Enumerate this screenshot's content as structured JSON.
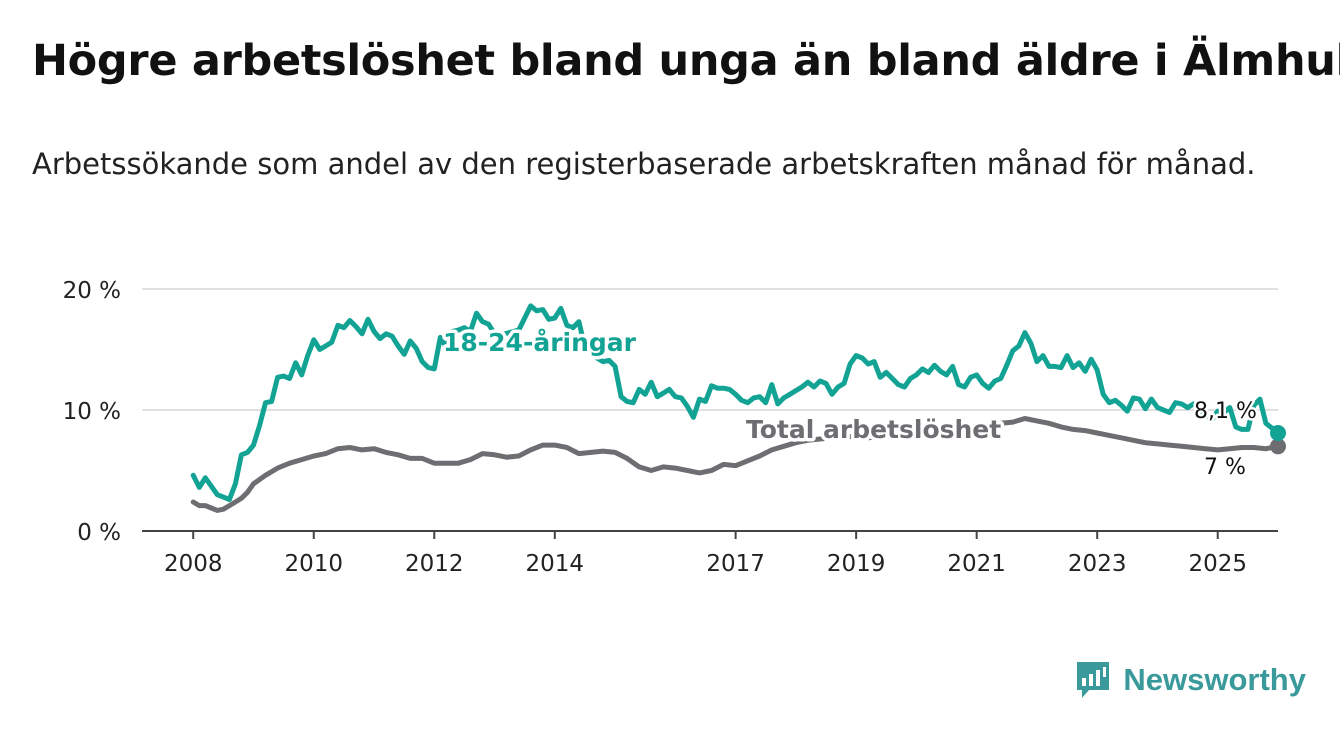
{
  "title": "Högre arbetslöshet bland unga än bland äldre i Älmhult",
  "subtitle": "Arbetssökande som andel av den registerbaserade arbetskraften månad för månad.",
  "brand": "Newsworthy",
  "colors": {
    "youth": "#12a394",
    "total": "#6e6e72",
    "axis": "#444444",
    "grid": "#d6d6d6",
    "text": "#111111"
  },
  "chart_data": {
    "type": "line",
    "x_unit": "year",
    "xlim": [
      2007.15,
      2026.0
    ],
    "ylim": [
      0,
      20
    ],
    "y_ticks": [
      0,
      10,
      20
    ],
    "y_tick_labels": [
      "0 %",
      "10 %",
      "20 %"
    ],
    "x_ticks": [
      2008,
      2010,
      2012,
      2014,
      2017,
      2019,
      2021,
      2023,
      2025
    ],
    "x_tick_labels": [
      "2008",
      "2010",
      "2012",
      "2014",
      "2017",
      "2019",
      "2021",
      "2023",
      "2025"
    ],
    "grid": "horizontal",
    "series": [
      {
        "name": "18-24-åringar",
        "color": "#12a394",
        "end_label": "8,1 %",
        "points": [
          [
            2008.0,
            4.6
          ],
          [
            2008.1,
            3.6
          ],
          [
            2008.2,
            4.4
          ],
          [
            2008.3,
            3.7
          ],
          [
            2008.4,
            3.0
          ],
          [
            2008.5,
            2.8
          ],
          [
            2008.6,
            2.6
          ],
          [
            2008.7,
            3.9
          ],
          [
            2008.8,
            6.3
          ],
          [
            2008.9,
            6.5
          ],
          [
            2009.0,
            7.1
          ],
          [
            2009.1,
            8.7
          ],
          [
            2009.2,
            10.6
          ],
          [
            2009.3,
            10.7
          ],
          [
            2009.4,
            12.7
          ],
          [
            2009.5,
            12.8
          ],
          [
            2009.6,
            12.6
          ],
          [
            2009.7,
            13.9
          ],
          [
            2009.8,
            12.9
          ],
          [
            2009.9,
            14.5
          ],
          [
            2010.0,
            15.8
          ],
          [
            2010.1,
            15.0
          ],
          [
            2010.2,
            15.3
          ],
          [
            2010.3,
            15.6
          ],
          [
            2010.4,
            17.0
          ],
          [
            2010.5,
            16.8
          ],
          [
            2010.6,
            17.4
          ],
          [
            2010.7,
            16.9
          ],
          [
            2010.8,
            16.3
          ],
          [
            2010.9,
            17.5
          ],
          [
            2011.0,
            16.5
          ],
          [
            2011.1,
            15.9
          ],
          [
            2011.2,
            16.3
          ],
          [
            2011.3,
            16.1
          ],
          [
            2011.4,
            15.3
          ],
          [
            2011.5,
            14.6
          ],
          [
            2011.6,
            15.7
          ],
          [
            2011.7,
            15.1
          ],
          [
            2011.8,
            14.0
          ],
          [
            2011.9,
            13.5
          ],
          [
            2012.0,
            13.4
          ],
          [
            2012.1,
            16.0
          ],
          [
            2012.2,
            15.2
          ],
          [
            2012.3,
            16.5
          ],
          [
            2012.4,
            16.6
          ],
          [
            2012.5,
            16.8
          ],
          [
            2012.6,
            16.5
          ],
          [
            2012.7,
            18.0
          ],
          [
            2012.8,
            17.3
          ],
          [
            2012.9,
            17.1
          ],
          [
            2013.0,
            16.3
          ],
          [
            2013.1,
            16.2
          ],
          [
            2013.4,
            16.6
          ],
          [
            2013.5,
            17.6
          ],
          [
            2013.6,
            18.6
          ],
          [
            2013.7,
            18.2
          ],
          [
            2013.8,
            18.3
          ],
          [
            2013.9,
            17.5
          ],
          [
            2014.0,
            17.6
          ],
          [
            2014.1,
            18.4
          ],
          [
            2014.2,
            17.0
          ],
          [
            2014.3,
            16.8
          ],
          [
            2014.4,
            17.3
          ],
          [
            2014.5,
            15.2
          ],
          [
            2014.6,
            14.8
          ],
          [
            2014.7,
            14.3
          ],
          [
            2014.8,
            14.0
          ],
          [
            2014.9,
            14.1
          ],
          [
            2015.0,
            13.6
          ],
          [
            2015.1,
            11.1
          ],
          [
            2015.2,
            10.7
          ],
          [
            2015.3,
            10.6
          ],
          [
            2015.4,
            11.7
          ],
          [
            2015.5,
            11.3
          ],
          [
            2015.6,
            12.3
          ],
          [
            2015.7,
            11.1
          ],
          [
            2015.8,
            11.4
          ],
          [
            2015.9,
            11.7
          ],
          [
            2016.0,
            11.1
          ],
          [
            2016.1,
            11.0
          ],
          [
            2016.2,
            10.3
          ],
          [
            2016.3,
            9.4
          ],
          [
            2016.4,
            10.9
          ],
          [
            2016.5,
            10.7
          ],
          [
            2016.6,
            12.0
          ],
          [
            2016.7,
            11.8
          ],
          [
            2016.8,
            11.8
          ],
          [
            2016.9,
            11.7
          ],
          [
            2017.0,
            11.3
          ],
          [
            2017.1,
            10.8
          ],
          [
            2017.2,
            10.6
          ],
          [
            2017.3,
            11.0
          ],
          [
            2017.4,
            11.1
          ],
          [
            2017.5,
            10.6
          ],
          [
            2017.6,
            12.1
          ],
          [
            2017.7,
            10.5
          ],
          [
            2017.8,
            11.0
          ],
          [
            2017.9,
            11.3
          ],
          [
            2018.0,
            11.6
          ],
          [
            2018.1,
            11.9
          ],
          [
            2018.2,
            12.3
          ],
          [
            2018.3,
            11.9
          ],
          [
            2018.4,
            12.4
          ],
          [
            2018.5,
            12.2
          ],
          [
            2018.6,
            11.3
          ],
          [
            2018.7,
            11.9
          ],
          [
            2018.8,
            12.2
          ],
          [
            2018.9,
            13.8
          ],
          [
            2019.0,
            14.5
          ],
          [
            2019.1,
            14.3
          ],
          [
            2019.2,
            13.8
          ],
          [
            2019.3,
            14.0
          ],
          [
            2019.4,
            12.7
          ],
          [
            2019.5,
            13.1
          ],
          [
            2019.6,
            12.6
          ],
          [
            2019.7,
            12.1
          ],
          [
            2019.8,
            11.9
          ],
          [
            2019.9,
            12.6
          ],
          [
            2020.0,
            12.9
          ],
          [
            2020.1,
            13.4
          ],
          [
            2020.2,
            13.1
          ],
          [
            2020.3,
            13.7
          ],
          [
            2020.4,
            13.2
          ],
          [
            2020.5,
            12.9
          ],
          [
            2020.6,
            13.6
          ],
          [
            2020.7,
            12.1
          ],
          [
            2020.8,
            11.9
          ],
          [
            2020.9,
            12.7
          ],
          [
            2021.0,
            12.9
          ],
          [
            2021.1,
            12.2
          ],
          [
            2021.2,
            11.8
          ],
          [
            2021.3,
            12.4
          ],
          [
            2021.4,
            12.6
          ],
          [
            2021.5,
            13.7
          ],
          [
            2021.6,
            14.9
          ],
          [
            2021.7,
            15.3
          ],
          [
            2021.8,
            16.4
          ],
          [
            2021.9,
            15.5
          ],
          [
            2022.0,
            14.0
          ],
          [
            2022.1,
            14.5
          ],
          [
            2022.2,
            13.6
          ],
          [
            2022.3,
            13.6
          ],
          [
            2022.4,
            13.5
          ],
          [
            2022.5,
            14.5
          ],
          [
            2022.6,
            13.5
          ],
          [
            2022.7,
            13.9
          ],
          [
            2022.8,
            13.2
          ],
          [
            2022.9,
            14.2
          ],
          [
            2023.0,
            13.3
          ],
          [
            2023.1,
            11.3
          ],
          [
            2023.2,
            10.6
          ],
          [
            2023.3,
            10.8
          ],
          [
            2023.4,
            10.4
          ],
          [
            2023.5,
            9.9
          ],
          [
            2023.6,
            11.0
          ],
          [
            2023.7,
            10.9
          ],
          [
            2023.8,
            10.1
          ],
          [
            2023.9,
            10.9
          ],
          [
            2024.0,
            10.2
          ],
          [
            2024.1,
            10.0
          ],
          [
            2024.2,
            9.8
          ],
          [
            2024.3,
            10.6
          ],
          [
            2024.4,
            10.5
          ],
          [
            2024.5,
            10.2
          ],
          [
            2024.6,
            10.5
          ],
          [
            2024.7,
            10.1
          ],
          [
            2024.8,
            9.6
          ],
          [
            2024.9,
            9.2
          ],
          [
            2025.0,
            9.9
          ],
          [
            2025.1,
            9.8
          ],
          [
            2025.2,
            10.2
          ],
          [
            2025.3,
            8.6
          ],
          [
            2025.4,
            8.4
          ],
          [
            2025.5,
            8.4
          ],
          [
            2025.6,
            10.4
          ],
          [
            2025.7,
            10.9
          ],
          [
            2025.8,
            8.9
          ],
          [
            2025.9,
            8.5
          ],
          [
            2026.0,
            8.1
          ]
        ]
      },
      {
        "name": "Total arbetslöshet",
        "color": "#6e6e72",
        "end_label": "7 %",
        "points": [
          [
            2008.0,
            2.4
          ],
          [
            2008.1,
            2.1
          ],
          [
            2008.2,
            2.1
          ],
          [
            2008.3,
            1.9
          ],
          [
            2008.4,
            1.7
          ],
          [
            2008.5,
            1.8
          ],
          [
            2008.6,
            2.1
          ],
          [
            2008.7,
            2.4
          ],
          [
            2008.8,
            2.7
          ],
          [
            2008.9,
            3.2
          ],
          [
            2009.0,
            3.9
          ],
          [
            2009.2,
            4.6
          ],
          [
            2009.4,
            5.2
          ],
          [
            2009.6,
            5.6
          ],
          [
            2009.8,
            5.9
          ],
          [
            2010.0,
            6.2
          ],
          [
            2010.2,
            6.4
          ],
          [
            2010.4,
            6.8
          ],
          [
            2010.6,
            6.9
          ],
          [
            2010.8,
            6.7
          ],
          [
            2011.0,
            6.8
          ],
          [
            2011.2,
            6.5
          ],
          [
            2011.4,
            6.3
          ],
          [
            2011.6,
            6.0
          ],
          [
            2011.8,
            6.0
          ],
          [
            2012.0,
            5.6
          ],
          [
            2012.2,
            5.6
          ],
          [
            2012.4,
            5.6
          ],
          [
            2012.6,
            5.9
          ],
          [
            2012.8,
            6.4
          ],
          [
            2013.0,
            6.3
          ],
          [
            2013.2,
            6.1
          ],
          [
            2013.4,
            6.2
          ],
          [
            2013.6,
            6.7
          ],
          [
            2013.8,
            7.1
          ],
          [
            2014.0,
            7.1
          ],
          [
            2014.2,
            6.9
          ],
          [
            2014.4,
            6.4
          ],
          [
            2014.6,
            6.5
          ],
          [
            2014.8,
            6.6
          ],
          [
            2015.0,
            6.5
          ],
          [
            2015.2,
            6.0
          ],
          [
            2015.4,
            5.3
          ],
          [
            2015.6,
            5.0
          ],
          [
            2015.8,
            5.3
          ],
          [
            2016.0,
            5.2
          ],
          [
            2016.2,
            5.0
          ],
          [
            2016.4,
            4.8
          ],
          [
            2016.6,
            5.0
          ],
          [
            2016.8,
            5.5
          ],
          [
            2017.0,
            5.4
          ],
          [
            2017.2,
            5.8
          ],
          [
            2017.4,
            6.2
          ],
          [
            2017.6,
            6.7
          ],
          [
            2017.8,
            7.0
          ],
          [
            2018.0,
            7.3
          ],
          [
            2018.2,
            7.5
          ],
          [
            2018.4,
            7.6
          ],
          [
            2018.6,
            7.7
          ],
          [
            2018.8,
            7.7
          ],
          [
            2019.0,
            7.9
          ],
          [
            2019.2,
            7.7
          ],
          [
            2019.4,
            7.8
          ],
          [
            2019.6,
            7.8
          ],
          [
            2019.8,
            7.9
          ],
          [
            2020.0,
            8.1
          ],
          [
            2020.2,
            8.0
          ],
          [
            2020.4,
            7.9
          ],
          [
            2020.6,
            8.1
          ],
          [
            2020.8,
            8.0
          ],
          [
            2021.0,
            8.2
          ],
          [
            2021.2,
            8.4
          ],
          [
            2021.4,
            8.9
          ],
          [
            2021.6,
            9.0
          ],
          [
            2021.8,
            9.3
          ],
          [
            2022.0,
            9.1
          ],
          [
            2022.2,
            8.9
          ],
          [
            2022.4,
            8.6
          ],
          [
            2022.6,
            8.4
          ],
          [
            2022.8,
            8.3
          ],
          [
            2023.0,
            8.1
          ],
          [
            2023.2,
            7.9
          ],
          [
            2023.4,
            7.7
          ],
          [
            2023.6,
            7.5
          ],
          [
            2023.8,
            7.3
          ],
          [
            2024.0,
            7.2
          ],
          [
            2024.2,
            7.1
          ],
          [
            2024.4,
            7.0
          ],
          [
            2024.6,
            6.9
          ],
          [
            2024.8,
            6.8
          ],
          [
            2025.0,
            6.7
          ],
          [
            2025.2,
            6.8
          ],
          [
            2025.4,
            6.9
          ],
          [
            2025.6,
            6.9
          ],
          [
            2025.8,
            6.8
          ],
          [
            2026.0,
            7.0
          ]
        ]
      }
    ]
  }
}
